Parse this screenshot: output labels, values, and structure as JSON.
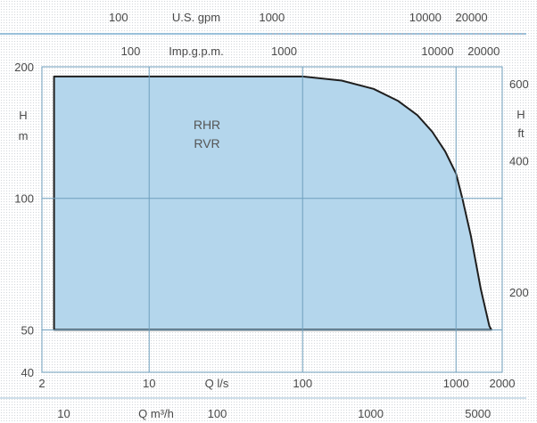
{
  "chart_data": {
    "type": "area",
    "title": "",
    "curve_labels": [
      "RHR",
      "RVR"
    ],
    "x_axis_bottom": {
      "label": "Q l/s",
      "scale": "log",
      "range": [
        2,
        2000
      ],
      "ticks": [
        2,
        10,
        100,
        1000,
        2000
      ],
      "tick_labels": [
        "2",
        "10",
        "100",
        "1000",
        "2000"
      ]
    },
    "x_axis_bottom2": {
      "label": "Q m³/h",
      "tick_labels": [
        "10",
        "100",
        "1000",
        "5000"
      ],
      "ticks": [
        10,
        100,
        1000,
        5000
      ]
    },
    "x_axis_top": {
      "label": "U.S. gpm",
      "tick_labels": [
        "100",
        "1000",
        "10000",
        "20000"
      ],
      "ticks": [
        100,
        1000,
        10000,
        20000
      ]
    },
    "x_axis_top2": {
      "label": "Imp.g.p.m.",
      "tick_labels": [
        "100",
        "1000",
        "10000",
        "20000"
      ],
      "ticks": [
        100,
        1000,
        10000,
        20000
      ]
    },
    "y_axis_left": {
      "label": "H",
      "unit": "m",
      "scale": "log",
      "range": [
        40,
        200
      ],
      "ticks": [
        40,
        50,
        100,
        200
      ],
      "tick_labels": [
        "40",
        "50",
        "100",
        "200"
      ]
    },
    "y_axis_right": {
      "label": "H",
      "unit": "ft",
      "tick_labels": [
        "600",
        "400",
        "200"
      ],
      "ticks": [
        600,
        400,
        200
      ]
    },
    "grid": true,
    "envelope": {
      "name": "RHR / RVR",
      "fill": "#b4d6ec",
      "outline": "#1f1f1f",
      "x": [
        2.4,
        100,
        180,
        290,
        420,
        560,
        700,
        850,
        1000,
        1100,
        1250,
        1450,
        1650,
        1700,
        2.4
      ],
      "y": [
        190,
        190,
        186,
        178,
        167,
        155,
        142,
        128,
        114,
        100,
        82,
        62,
        51,
        50,
        50
      ]
    }
  }
}
